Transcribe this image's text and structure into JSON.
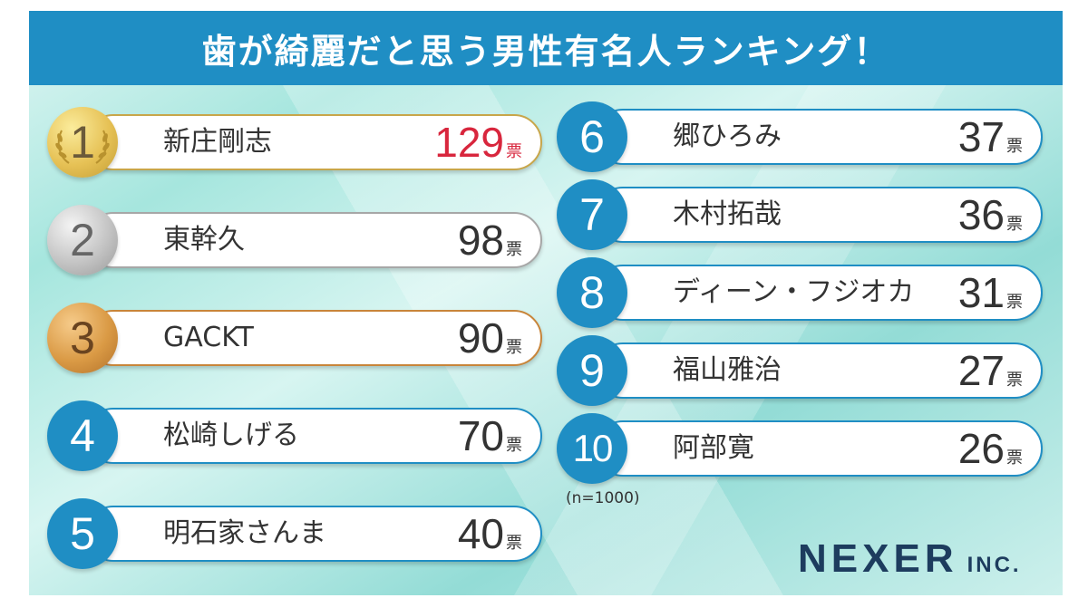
{
  "title": "歯が綺麗だと思う男性有名人ランキング！",
  "vote_unit": "票",
  "rankings": [
    {
      "rank": "1",
      "name": "新庄剛志",
      "votes": "129"
    },
    {
      "rank": "2",
      "name": "東幹久",
      "votes": "98"
    },
    {
      "rank": "3",
      "name": "GACKT",
      "votes": "90"
    },
    {
      "rank": "4",
      "name": "松崎しげる",
      "votes": "70"
    },
    {
      "rank": "5",
      "name": "明石家さんま",
      "votes": "40"
    },
    {
      "rank": "6",
      "name": "郷ひろみ",
      "votes": "37"
    },
    {
      "rank": "7",
      "name": "木村拓哉",
      "votes": "36"
    },
    {
      "rank": "8",
      "name": "ディーン・フジオカ",
      "votes": "31"
    },
    {
      "rank": "9",
      "name": "福山雅治",
      "votes": "27"
    },
    {
      "rank": "10",
      "name": "阿部寛",
      "votes": "26"
    }
  ],
  "note": "(n=1000)",
  "logo": {
    "main": "NEXER",
    "sub": "INC."
  },
  "colors": {
    "header": "#1f8ec4",
    "badge": "#1f8ec4",
    "first_votes": "#d8263d",
    "gold": "#e6c155",
    "silver": "#c4c4c4",
    "bronze": "#da9a45"
  },
  "icons": [
    "laurel-wreath-icon"
  ]
}
